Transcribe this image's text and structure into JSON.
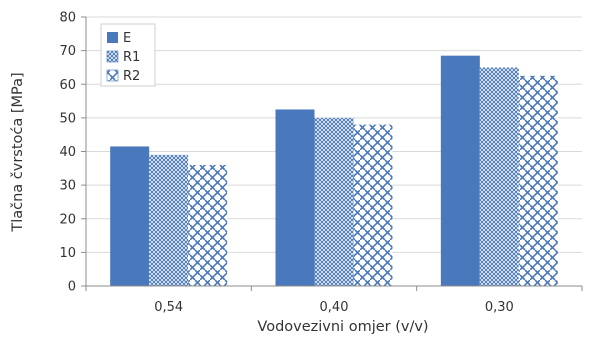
{
  "chart_data": {
    "type": "bar",
    "title": "",
    "xlabel": "Vodovezivni omjer (v/v)",
    "ylabel": "Tlačna čvrstoća [MPa]",
    "ylim": [
      0,
      80
    ],
    "yticks": [
      0,
      10,
      20,
      30,
      40,
      50,
      60,
      70,
      80
    ],
    "grid": true,
    "legend_position": "top-left",
    "categories": [
      "0,54",
      "0,40",
      "0,30"
    ],
    "series": [
      {
        "name": "E",
        "values": [
          41.5,
          52.5,
          68.5
        ],
        "color": "#4a78bd",
        "pattern": "solid"
      },
      {
        "name": "R1",
        "values": [
          39.0,
          50.0,
          65.0
        ],
        "color": "#4a78bd",
        "pattern": "crosshatch"
      },
      {
        "name": "R2",
        "values": [
          36.0,
          48.0,
          62.5
        ],
        "color": "#4a78bd",
        "pattern": "diagonal-brick"
      }
    ]
  }
}
